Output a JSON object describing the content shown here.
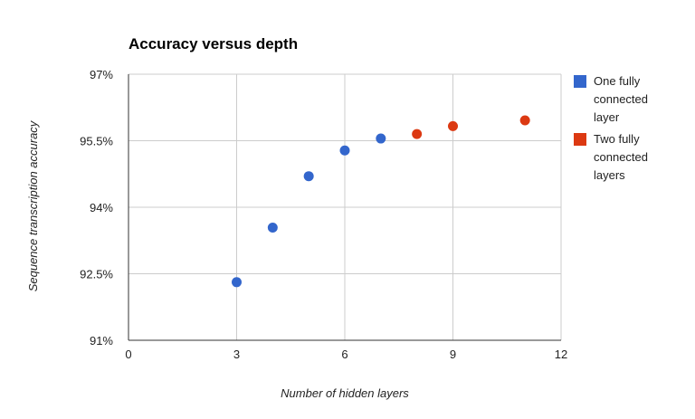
{
  "chart_data": {
    "type": "scatter",
    "title": "Accuracy versus depth",
    "xlabel": "Number of hidden layers",
    "ylabel": "Sequence transcription accuracy",
    "xlim": [
      0,
      12
    ],
    "ylim": [
      91,
      97
    ],
    "x_ticks": [
      {
        "value": 0,
        "label": "0"
      },
      {
        "value": 3,
        "label": "3"
      },
      {
        "value": 6,
        "label": "6"
      },
      {
        "value": 9,
        "label": "9"
      },
      {
        "value": 12,
        "label": "12"
      }
    ],
    "y_ticks": [
      {
        "value": 91,
        "label": "91%"
      },
      {
        "value": 92.5,
        "label": "92.5%"
      },
      {
        "value": 94,
        "label": "94%"
      },
      {
        "value": 95.5,
        "label": "95.5%"
      },
      {
        "value": 97,
        "label": "97%"
      }
    ],
    "grid": true,
    "legend_position": "right",
    "series": [
      {
        "name": "One fully connected layer",
        "legend_lines": [
          "One fully",
          "connected",
          "layer"
        ],
        "color": "#3366cc",
        "points": [
          {
            "x": 3,
            "y": 92.31
          },
          {
            "x": 4,
            "y": 93.54
          },
          {
            "x": 5,
            "y": 94.7
          },
          {
            "x": 6,
            "y": 95.28
          },
          {
            "x": 7,
            "y": 95.55
          }
        ]
      },
      {
        "name": "Two fully connected layers",
        "legend_lines": [
          "Two fully",
          "connected",
          "layers"
        ],
        "color": "#dc3912",
        "points": [
          {
            "x": 8,
            "y": 95.65
          },
          {
            "x": 9,
            "y": 95.83
          },
          {
            "x": 11,
            "y": 95.96
          }
        ]
      }
    ]
  }
}
